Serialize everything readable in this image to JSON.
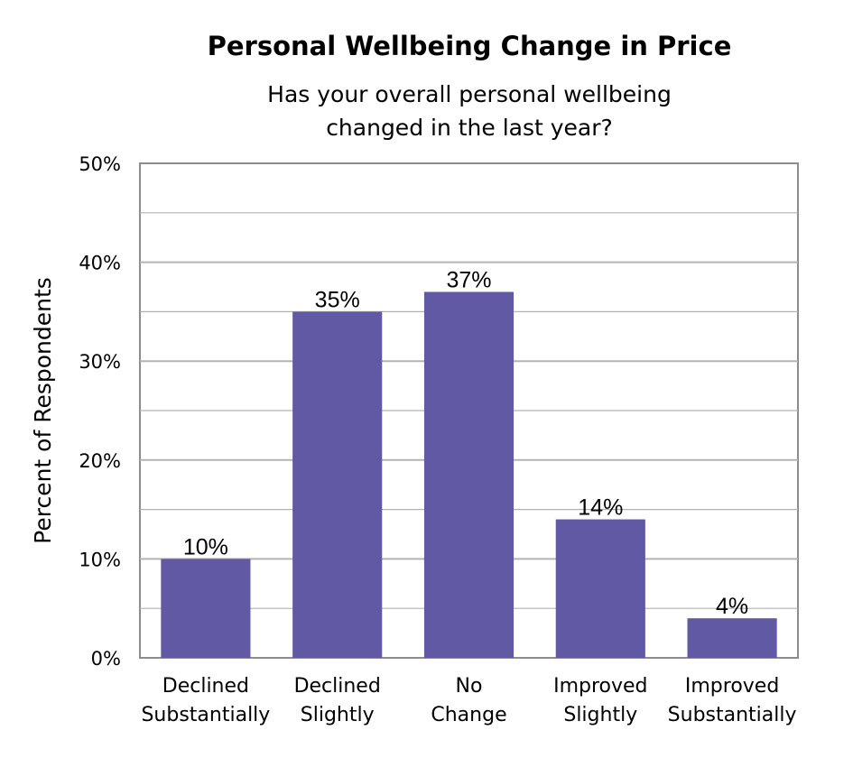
{
  "chart_data": {
    "type": "bar",
    "title": "Personal Wellbeing Change in Price",
    "subtitle_lines": [
      "Has your overall personal wellbeing",
      "changed in the last year?"
    ],
    "xlabel": "",
    "ylabel": "Percent of Respondents",
    "categories": [
      [
        "Declined",
        "Substantially"
      ],
      [
        "Declined",
        "Slightly"
      ],
      [
        "No",
        "Change"
      ],
      [
        "Improved",
        "Slightly"
      ],
      [
        "Improved",
        "Substantially"
      ]
    ],
    "values": [
      10,
      35,
      37,
      14,
      4
    ],
    "data_labels": [
      "10%",
      "35%",
      "37%",
      "14%",
      "4%"
    ],
    "ylim": [
      0,
      50
    ],
    "y_ticks": [
      "0%",
      "10%",
      "20%",
      "30%",
      "40%",
      "50%"
    ],
    "grid": true,
    "legend": "none",
    "bar_color": "#6159a4",
    "grid_color": "#b3b3b3",
    "axis_color": "#8c8c8c"
  }
}
